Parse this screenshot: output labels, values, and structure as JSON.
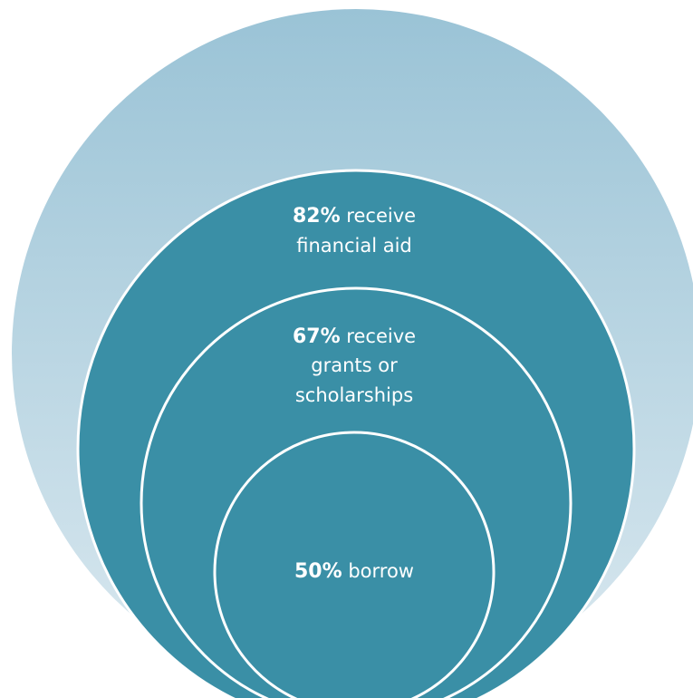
{
  "colors": {
    "outer_gradient_top": "#9ac3d6",
    "outer_gradient_bottom": "#dbe9f0",
    "inner_fill": "#3a8fa6",
    "ring_stroke": "#ffffff"
  },
  "circles": [
    {
      "name": "outer",
      "label_lines": []
    },
    {
      "name": "financial-aid",
      "percent": "82%",
      "percent_suffix": " receive",
      "line2": "financial aid"
    },
    {
      "name": "grants-scholarships",
      "percent": "67%",
      "percent_suffix": " receive",
      "line2": "grants or",
      "line3": "scholarships"
    },
    {
      "name": "borrow",
      "percent": "50%",
      "percent_suffix": " borrow"
    }
  ]
}
